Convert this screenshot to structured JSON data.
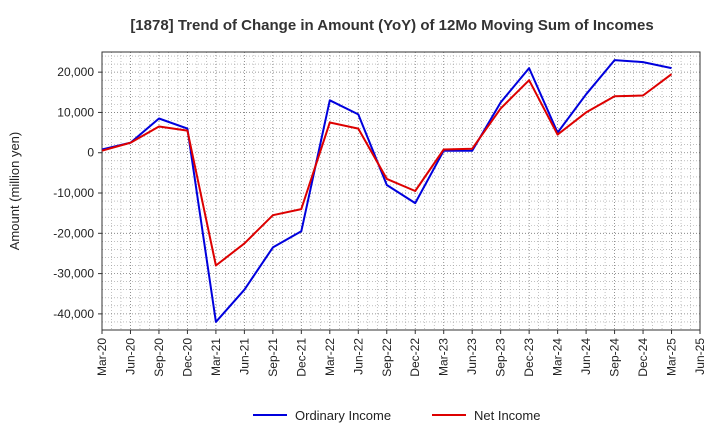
{
  "chart_data": {
    "type": "line",
    "title": "[1878]  Trend of Change in Amount (YoY) of 12Mo Moving Sum of Incomes",
    "xlabel": "",
    "ylabel": "Amount (million yen)",
    "ylim": [
      -44000,
      25000
    ],
    "yticks": [
      20000,
      10000,
      0,
      -10000,
      -20000,
      -30000,
      -40000
    ],
    "ytick_labels": [
      "20,000",
      "10,000",
      "0",
      "-10,000",
      "-20,000",
      "-30,000",
      "-40,000"
    ],
    "categories": [
      "Mar-20",
      "Jun-20",
      "Sep-20",
      "Dec-20",
      "Mar-21",
      "Jun-21",
      "Sep-21",
      "Dec-21",
      "Mar-22",
      "Jun-22",
      "Sep-22",
      "Dec-22",
      "Mar-23",
      "Jun-23",
      "Sep-23",
      "Dec-23",
      "Mar-24",
      "Jun-24",
      "Sep-24",
      "Dec-24",
      "Mar-25",
      "Jun-25"
    ],
    "grid": true,
    "legend_position": "bottom",
    "series": [
      {
        "name": "Ordinary Income",
        "color": "#0000dd",
        "values": [
          800,
          2500,
          8500,
          6000,
          -42000,
          -34000,
          -23500,
          -19500,
          13000,
          9500,
          -8000,
          -12500,
          500,
          500,
          12500,
          21000,
          5000,
          14500,
          23000,
          22500,
          21000,
          null
        ]
      },
      {
        "name": "Net Income",
        "color": "#dd0000",
        "values": [
          500,
          2500,
          6500,
          5500,
          -28000,
          -22500,
          -15500,
          -14000,
          7500,
          6000,
          -6500,
          -9500,
          800,
          1000,
          11000,
          18000,
          4500,
          10000,
          14000,
          14200,
          19500,
          null
        ]
      }
    ]
  }
}
